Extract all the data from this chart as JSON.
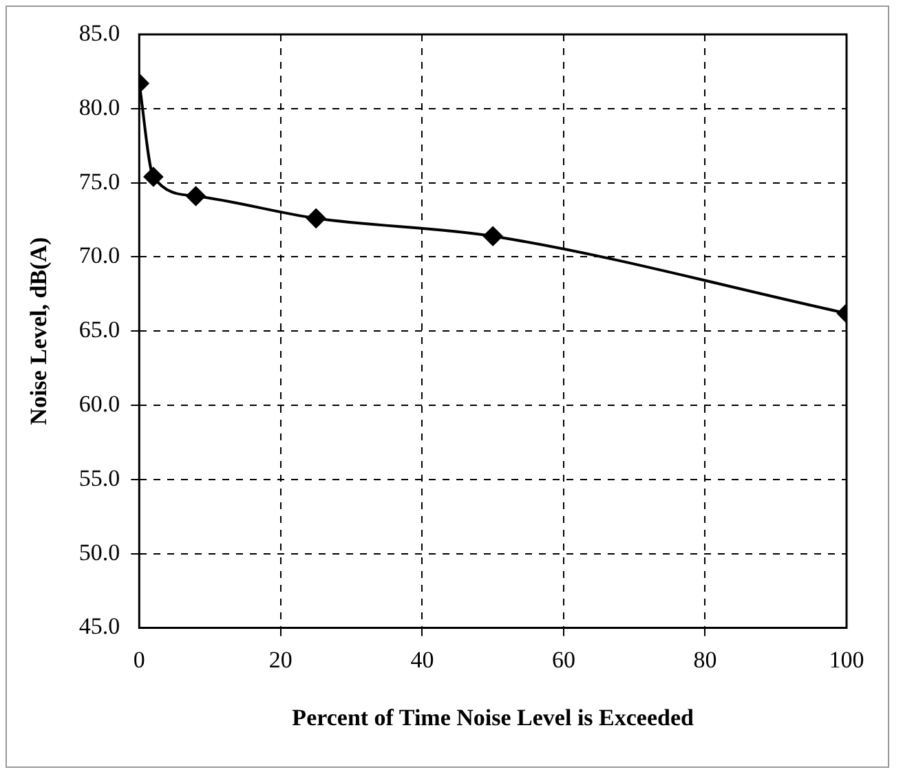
{
  "chart_data": {
    "type": "line",
    "xlabel": "Percent of Time Noise Level is Exceeded",
    "ylabel": "Noise Level, dB(A)",
    "x": [
      0,
      2,
      8,
      25,
      50,
      100
    ],
    "series": [
      {
        "color": "#000000",
        "values": [
          81.7,
          75.4,
          74.1,
          72.6,
          71.4,
          66.2
        ]
      }
    ],
    "xlim": [
      0,
      100
    ],
    "xticks": [
      0,
      20,
      40,
      60,
      80,
      100
    ],
    "ylim": [
      45,
      85
    ],
    "yticks": [
      {
        "value": 45,
        "label": "45.0"
      },
      {
        "value": 50,
        "label": "50.0"
      },
      {
        "value": 55,
        "label": "55.0"
      },
      {
        "value": 60,
        "label": "60.0"
      },
      {
        "value": 65,
        "label": "65.0"
      },
      {
        "value": 70,
        "label": "70.0"
      },
      {
        "value": 75,
        "label": "75.0"
      },
      {
        "value": 80,
        "label": "80.0"
      },
      {
        "value": 85,
        "label": "85.0"
      }
    ],
    "grid": true,
    "marker": "diamond",
    "line_style": "solid",
    "legend": false
  }
}
